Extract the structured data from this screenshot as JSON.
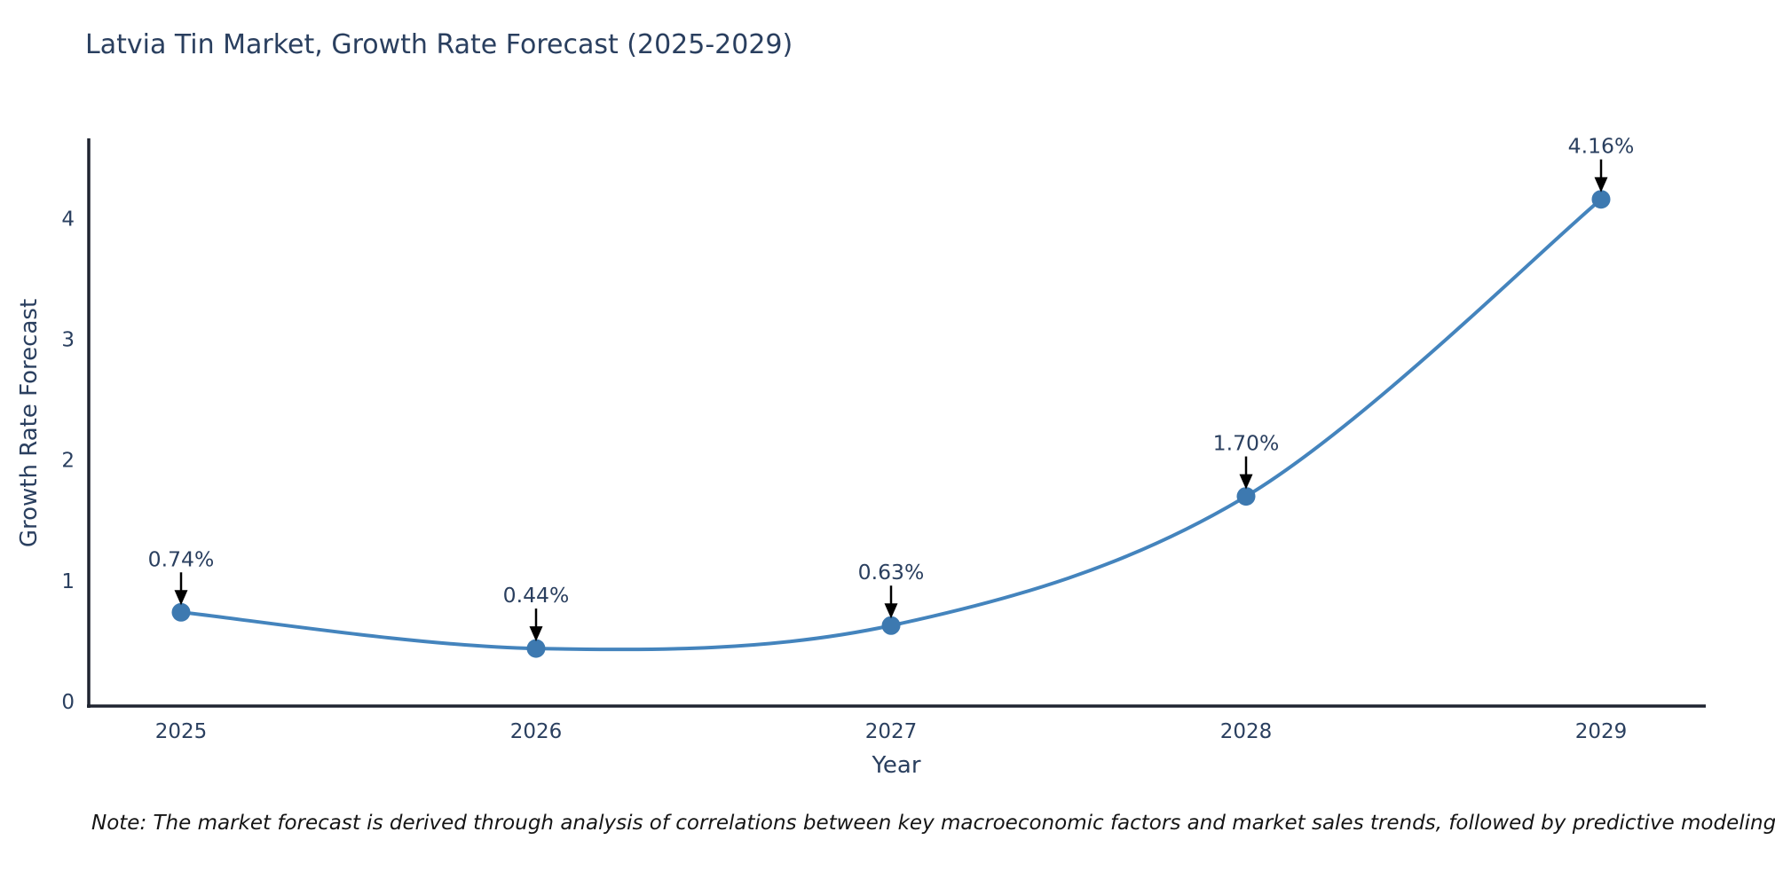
{
  "page": {
    "title": "Latvia Tin Market, Growth Rate Forecast (2025-2029)",
    "note": "Note: The market forecast is derived through analysis of correlations between key macroeconomic factors and market sales trends, followed by predictive modeling to project future sales."
  },
  "chart_data": {
    "type": "line",
    "title": "Latvia Tin Market, Growth Rate Forecast (2025-2029)",
    "xlabel": "Year",
    "ylabel": "Growth Rate Forecast",
    "x": [
      2025,
      2026,
      2027,
      2028,
      2029
    ],
    "series": [
      {
        "name": "Growth Rate Forecast",
        "values": [
          0.74,
          0.44,
          0.63,
          1.7,
          4.16
        ],
        "point_labels": [
          "0.74%",
          "0.44%",
          "0.63%",
          "1.70%",
          "4.16%"
        ]
      }
    ],
    "xticks": [
      "2025",
      "2026",
      "2027",
      "2028",
      "2029"
    ],
    "yticks": [
      0,
      1,
      2,
      3,
      4
    ],
    "xlim": [
      2024.74,
      2029.29
    ],
    "ylim": [
      0,
      4.65
    ],
    "grid": false,
    "legend_position": "none",
    "line_shape": "spline",
    "marker": "circle",
    "annotations": "arrow-down-to-point",
    "colors": {
      "line": "#4484bd",
      "marker": "#3d79b0",
      "axis": "#1f2430",
      "text": "#2a3f5f",
      "annotation_arrow": "#000000",
      "background": "#ffffff"
    }
  }
}
